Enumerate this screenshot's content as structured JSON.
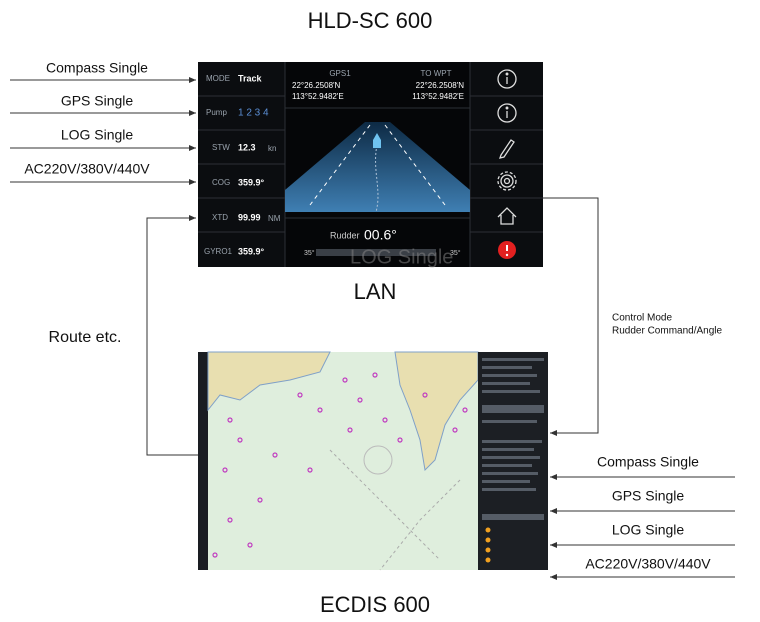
{
  "header": {
    "title": "HLD-SC 600"
  },
  "hld_inputs": [
    "Compass Single",
    "GPS Single",
    "LOG Single",
    "AC220V/380V/440V"
  ],
  "screen": {
    "mode": [
      "MODE",
      "Track"
    ],
    "pump": [
      "Pump",
      "1 2 3 4"
    ],
    "stw": [
      "STW",
      "12.3",
      "kn"
    ],
    "cog": [
      "COG",
      "359.9°"
    ],
    "xtd": [
      "XTD",
      "99.99",
      "NM"
    ],
    "gyro": [
      "GYRO1",
      "359.9°"
    ],
    "gps": [
      "GPS1",
      "22°26.2508'N",
      "113°52.9482'E"
    ],
    "wpt": [
      "TO WPT",
      "22°26.2508'N",
      "113°52.9482'E"
    ],
    "rudder": [
      "Rudder",
      "00.6°",
      "35°",
      "35°"
    ],
    "watermark": "LOG Single"
  },
  "lan_label": "LAN",
  "route_label": "Route etc.",
  "control_labels": [
    "Control Mode",
    "Rudder Command/Angle"
  ],
  "ecdis_inputs": [
    "Compass Single",
    "GPS Single",
    "LOG Single",
    "AC220V/380V/440V"
  ],
  "footer": {
    "title": "ECDIS 600"
  }
}
